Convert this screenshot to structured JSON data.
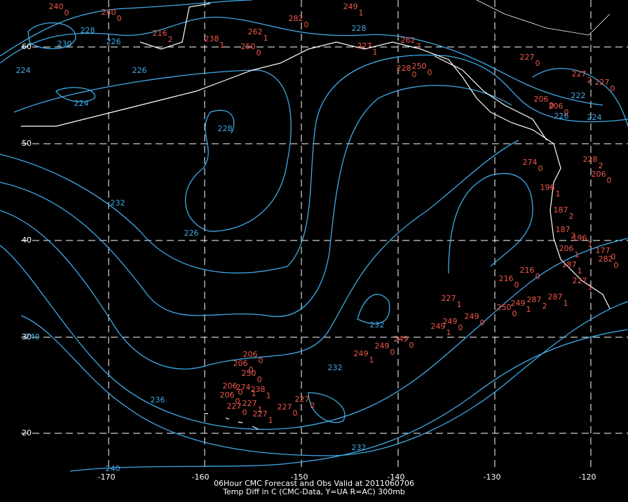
{
  "map": {
    "lat_labels": [
      "60",
      "50",
      "40",
      "30",
      "20"
    ],
    "lon_labels": [
      "-170",
      "-160",
      "-150",
      "-140",
      "-130",
      "-120"
    ],
    "caption": [
      "06Hour CMC Forecast and Obs Valid at 2011060706",
      "Temp Diff in C (CMC-Data, Y=UA R=AC) 300mb"
    ],
    "contour_labels": [
      "230",
      "228",
      "226",
      "224",
      "226",
      "224",
      "228",
      "228",
      "232",
      "226",
      "232",
      "232",
      "240",
      "236",
      "232",
      "240",
      "222",
      "224",
      "226"
    ],
    "stations": [
      {
        "value": "240",
        "diff": "0"
      },
      {
        "value": "240",
        "diff": "0"
      },
      {
        "value": "216",
        "diff": "2"
      },
      {
        "value": "238",
        "diff": "1"
      },
      {
        "value": "262",
        "diff": "1"
      },
      {
        "value": "250",
        "diff": "0"
      },
      {
        "value": "282",
        "diff": "0"
      },
      {
        "value": "249",
        "diff": "1"
      },
      {
        "value": "227",
        "diff": "1"
      },
      {
        "value": "262",
        "diff": "7"
      },
      {
        "value": "228",
        "diff": "0"
      },
      {
        "value": "250",
        "diff": "0"
      },
      {
        "value": "227",
        "diff": "0"
      },
      {
        "value": "227",
        "diff": "2"
      },
      {
        "value": "227",
        "diff": "0"
      },
      {
        "value": "206",
        "diff": "0"
      },
      {
        "value": "206",
        "diff": "0"
      },
      {
        "value": "228",
        "diff": "2"
      },
      {
        "value": "274",
        "diff": "0"
      },
      {
        "value": "206",
        "diff": "0"
      },
      {
        "value": "196",
        "diff": "1"
      },
      {
        "value": "187",
        "diff": "2"
      },
      {
        "value": "187",
        "diff": "2"
      },
      {
        "value": "196",
        "diff": "1"
      },
      {
        "value": "206",
        "diff": "1"
      },
      {
        "value": "177",
        "diff": "0"
      },
      {
        "value": "282",
        "diff": "0"
      },
      {
        "value": "187",
        "diff": "1"
      },
      {
        "value": "216",
        "diff": "0"
      },
      {
        "value": "216",
        "diff": "0"
      },
      {
        "value": "227",
        "diff": "1"
      },
      {
        "value": "287",
        "diff": "1"
      },
      {
        "value": "287",
        "diff": "2"
      },
      {
        "value": "249",
        "diff": "1"
      },
      {
        "value": "250",
        "diff": "0"
      },
      {
        "value": "249",
        "diff": "0"
      },
      {
        "value": "249",
        "diff": "0"
      },
      {
        "value": "249",
        "diff": "1"
      },
      {
        "value": "227",
        "diff": "1"
      },
      {
        "value": "249",
        "diff": "0"
      },
      {
        "value": "249",
        "diff": "0"
      },
      {
        "value": "249",
        "diff": "1"
      },
      {
        "value": "206",
        "diff": "0"
      },
      {
        "value": "206",
        "diff": "0"
      },
      {
        "value": "250",
        "diff": "0"
      },
      {
        "value": "206",
        "diff": "0"
      },
      {
        "value": "274",
        "diff": "1"
      },
      {
        "value": "238",
        "diff": "1"
      },
      {
        "value": "206",
        "diff": "0"
      },
      {
        "value": "227",
        "diff": "0"
      },
      {
        "value": "227",
        "diff": "1"
      },
      {
        "value": "227",
        "diff": "1"
      },
      {
        "value": "227",
        "diff": "0"
      },
      {
        "value": "227",
        "diff": "2"
      }
    ]
  }
}
